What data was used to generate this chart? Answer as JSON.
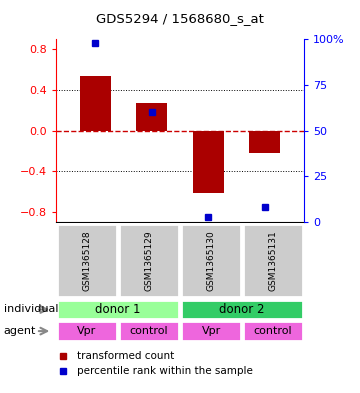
{
  "title": "GDS5294 / 1568680_s_at",
  "samples": [
    "GSM1365128",
    "GSM1365129",
    "GSM1365130",
    "GSM1365131"
  ],
  "bar_values": [
    0.54,
    0.27,
    -0.61,
    -0.22
  ],
  "percentile_values": [
    0.98,
    0.6,
    0.03,
    0.08
  ],
  "bar_color": "#aa0000",
  "dot_color": "#0000cc",
  "ylim": [
    -0.9,
    0.9
  ],
  "y2lim": [
    0,
    100
  ],
  "yticks": [
    -0.8,
    -0.4,
    0.0,
    0.4,
    0.8
  ],
  "y2ticks": [
    0,
    25,
    50,
    75,
    100
  ],
  "y2ticklabels": [
    "0",
    "25",
    "50",
    "75",
    "100%"
  ],
  "zero_line_color": "#cc0000",
  "grid_color": "#000000",
  "individual_labels": [
    "donor 1",
    "donor 2"
  ],
  "individual_colors": [
    "#99ff99",
    "#33cc66"
  ],
  "agent_labels": [
    "Vpr",
    "control",
    "Vpr",
    "control"
  ],
  "agent_color": "#ee66dd",
  "sample_bg_color": "#cccccc",
  "legend_bar_label": "transformed count",
  "legend_dot_label": "percentile rank within the sample",
  "individual_row_label": "individual",
  "agent_row_label": "agent",
  "bar_width": 0.55,
  "arrow_color": "#888888"
}
